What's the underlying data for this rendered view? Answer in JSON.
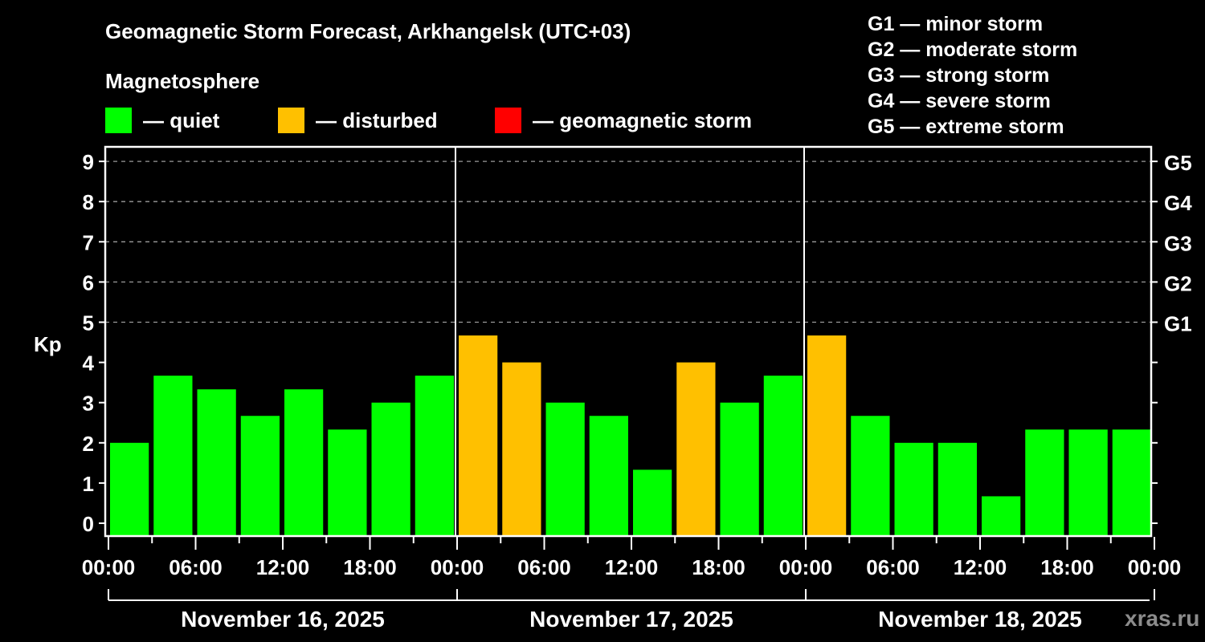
{
  "header": {
    "title": "Geomagnetic Storm Forecast, Arkhangelsk (UTC+03)",
    "subtitle": "Magnetosphere"
  },
  "legend": {
    "items": [
      {
        "label": "— quiet",
        "color": "#00ff00"
      },
      {
        "label": "— disturbed",
        "color": "#ffc000"
      },
      {
        "label": "— geomagnetic storm",
        "color": "#ff0000"
      }
    ]
  },
  "g_scale": [
    "G1 — minor storm",
    "G2 — moderate storm",
    "G3 — strong storm",
    "G4 — severe storm",
    "G5 — extreme storm"
  ],
  "watermark": "xras.ru",
  "chart_data": {
    "type": "bar",
    "title": "Geomagnetic Storm Forecast, Arkhangelsk (UTC+03)",
    "xlabel": "",
    "ylabel": "Kp",
    "ylim": [
      0,
      9
    ],
    "yticks": [
      "0",
      "1",
      "2",
      "3",
      "4",
      "5",
      "6",
      "7",
      "8",
      "9"
    ],
    "right_ticks": [
      {
        "kp": 5,
        "label": "G1"
      },
      {
        "kp": 6,
        "label": "G2"
      },
      {
        "kp": 7,
        "label": "G3"
      },
      {
        "kp": 8,
        "label": "G4"
      },
      {
        "kp": 9,
        "label": "G5"
      }
    ],
    "grid": "dashed horizontal at Kp 5-9",
    "xticks": [
      "00:00",
      "06:00",
      "12:00",
      "18:00",
      "00:00",
      "06:00",
      "12:00",
      "18:00",
      "00:00",
      "06:00",
      "12:00",
      "18:00",
      "00:00"
    ],
    "days": [
      "November 16, 2025",
      "November 17, 2025",
      "November 18, 2025"
    ],
    "categories": [
      "Nov16 00-03",
      "Nov16 03-06",
      "Nov16 06-09",
      "Nov16 09-12",
      "Nov16 12-15",
      "Nov16 15-18",
      "Nov16 18-21",
      "Nov16 21-24",
      "Nov17 00-03",
      "Nov17 03-06",
      "Nov17 06-09",
      "Nov17 09-12",
      "Nov17 12-15",
      "Nov17 15-18",
      "Nov17 18-21",
      "Nov17 21-24",
      "Nov18 00-03",
      "Nov18 03-06",
      "Nov18 06-09",
      "Nov18 09-12",
      "Nov18 12-15",
      "Nov18 15-18",
      "Nov18 18-21",
      "Nov18 21-24"
    ],
    "values": [
      2.0,
      3.67,
      3.33,
      2.67,
      3.33,
      2.33,
      3.0,
      3.67,
      4.67,
      4.0,
      3.0,
      2.67,
      1.33,
      4.0,
      3.0,
      3.67,
      4.67,
      2.67,
      2.0,
      2.0,
      0.67,
      2.33,
      2.33,
      2.33
    ],
    "status": [
      "quiet",
      "quiet",
      "quiet",
      "quiet",
      "quiet",
      "quiet",
      "quiet",
      "quiet",
      "disturbed",
      "disturbed",
      "quiet",
      "quiet",
      "quiet",
      "disturbed",
      "quiet",
      "quiet",
      "disturbed",
      "quiet",
      "quiet",
      "quiet",
      "quiet",
      "quiet",
      "quiet",
      "quiet"
    ],
    "colors": {
      "quiet": "#00ff00",
      "disturbed": "#ffc000",
      "storm": "#ff0000"
    }
  }
}
